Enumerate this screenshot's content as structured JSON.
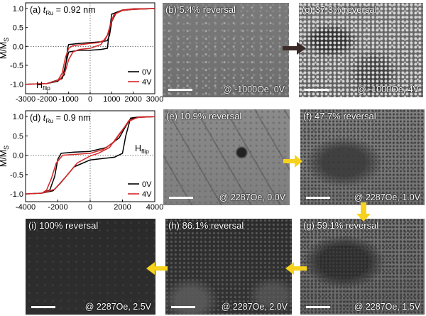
{
  "colors": {
    "curve_0v": "#000000",
    "curve_4v": "#d62728",
    "arrow_dark": "#3a2a28",
    "arrow_yellow": "#f6d21c"
  },
  "chart_data": [
    {
      "id": "a",
      "type": "line",
      "panel_label": "(a)",
      "annotation_t": "t",
      "annotation_sub": "Ru",
      "annotation_value": "= 0.92 nm",
      "hflip_main": "H",
      "hflip_sub": "flip",
      "ylabel": "M/M",
      "ylabel_sub": "S",
      "xlim": [
        -3000,
        3000
      ],
      "ylim": [
        -1.25,
        1.15
      ],
      "x_ticks": [
        -3000,
        -2000,
        -1000,
        0,
        1000,
        2000,
        3000
      ],
      "y_ticks": [
        -1.0,
        -0.5,
        0.0,
        0.5,
        1.0
      ],
      "y_tick_labels": [
        "-1.0",
        "-0.5",
        "0.0",
        "0.5",
        "1.0"
      ],
      "legend": [
        {
          "name": "0V",
          "color": "#000000"
        },
        {
          "name": "4V",
          "color": "#d62728"
        }
      ],
      "legend_position": "bottom-right",
      "series": [
        {
          "name": "0V",
          "color": "#000000",
          "points": [
            [
              -3000,
              -1.0
            ],
            [
              -2000,
              -0.98
            ],
            [
              -1500,
              -0.92
            ],
            [
              -1200,
              -0.75
            ],
            [
              -1100,
              -0.35
            ],
            [
              -1050,
              -0.05
            ],
            [
              -1000,
              0.05
            ],
            [
              -500,
              0.08
            ],
            [
              0,
              0.1
            ],
            [
              500,
              0.12
            ],
            [
              800,
              0.15
            ],
            [
              900,
              0.3
            ],
            [
              1000,
              0.65
            ],
            [
              1200,
              0.88
            ],
            [
              1500,
              0.95
            ],
            [
              2000,
              0.98
            ],
            [
              3000,
              1.0
            ],
            [
              2000,
              0.99
            ],
            [
              1500,
              0.96
            ],
            [
              1000,
              0.85
            ],
            [
              850,
              0.2
            ],
            [
              800,
              -0.05
            ],
            [
              500,
              -0.08
            ],
            [
              0,
              -0.1
            ],
            [
              -500,
              -0.1
            ],
            [
              -1000,
              -0.15
            ],
            [
              -1150,
              -0.5
            ],
            [
              -1300,
              -0.85
            ],
            [
              -2000,
              -0.98
            ],
            [
              -3000,
              -1.0
            ]
          ]
        },
        {
          "name": "4V",
          "color": "#d62728",
          "points": [
            [
              -3000,
              -1.0
            ],
            [
              -2000,
              -0.98
            ],
            [
              -1500,
              -0.9
            ],
            [
              -1300,
              -0.7
            ],
            [
              -1150,
              -0.3
            ],
            [
              -1000,
              -0.05
            ],
            [
              -800,
              0.02
            ],
            [
              -400,
              0.05
            ],
            [
              0,
              0.08
            ],
            [
              400,
              0.1
            ],
            [
              700,
              0.18
            ],
            [
              850,
              0.35
            ],
            [
              950,
              0.6
            ],
            [
              1150,
              0.85
            ],
            [
              1500,
              0.95
            ],
            [
              2000,
              0.98
            ],
            [
              3000,
              1.0
            ],
            [
              2000,
              0.99
            ],
            [
              1500,
              0.96
            ],
            [
              1100,
              0.84
            ],
            [
              950,
              0.6
            ],
            [
              800,
              0.3
            ],
            [
              500,
              0.05
            ],
            [
              0,
              -0.05
            ],
            [
              -500,
              -0.08
            ],
            [
              -800,
              -0.15
            ],
            [
              -1000,
              -0.35
            ],
            [
              -1150,
              -0.65
            ],
            [
              -1400,
              -0.88
            ],
            [
              -2000,
              -0.98
            ],
            [
              -3000,
              -1.0
            ]
          ]
        }
      ]
    },
    {
      "id": "d",
      "type": "line",
      "panel_label": "(d)",
      "annotation_t": "t",
      "annotation_sub": "Ru",
      "annotation_value": "= 0.9 nm",
      "hflip_main": "H",
      "hflip_sub": "flip",
      "ylabel": "M/M",
      "ylabel_sub": "S",
      "xlim": [
        -4000,
        4000
      ],
      "ylim": [
        -1.2,
        1.15
      ],
      "x_ticks": [
        -4000,
        -2000,
        0,
        2000,
        4000
      ],
      "y_ticks": [
        -1.0,
        -0.5,
        0.0,
        0.5,
        1.0
      ],
      "y_tick_labels": [
        "-1.0",
        "-0.5",
        "0.0",
        "0.5",
        "1.0"
      ],
      "legend": [
        {
          "name": "0V",
          "color": "#000000"
        },
        {
          "name": "4V",
          "color": "#d62728"
        }
      ],
      "legend_position": "bottom-right",
      "series": [
        {
          "name": "0V",
          "color": "#000000",
          "points": [
            [
              -4000,
              -1.0
            ],
            [
              -3000,
              -0.98
            ],
            [
              -2500,
              -0.9
            ],
            [
              -2200,
              -0.55
            ],
            [
              -2000,
              -0.1
            ],
            [
              -1800,
              0.05
            ],
            [
              -1000,
              0.08
            ],
            [
              0,
              0.1
            ],
            [
              1000,
              0.2
            ],
            [
              1800,
              0.45
            ],
            [
              2200,
              0.75
            ],
            [
              2500,
              0.95
            ],
            [
              3000,
              0.98
            ],
            [
              4000,
              1.0
            ],
            [
              3000,
              0.99
            ],
            [
              2500,
              0.96
            ],
            [
              2200,
              0.5
            ],
            [
              2000,
              0.05
            ],
            [
              1500,
              -0.05
            ],
            [
              0,
              -0.12
            ],
            [
              -1000,
              -0.3
            ],
            [
              -1800,
              -0.7
            ],
            [
              -2300,
              -0.92
            ],
            [
              -3000,
              -0.98
            ],
            [
              -4000,
              -1.0
            ]
          ]
        },
        {
          "name": "4V",
          "color": "#d62728",
          "points": [
            [
              -4000,
              -1.0
            ],
            [
              -3000,
              -0.98
            ],
            [
              -2700,
              -0.9
            ],
            [
              -2400,
              -0.6
            ],
            [
              -2100,
              -0.2
            ],
            [
              -1700,
              0.0
            ],
            [
              -1000,
              0.02
            ],
            [
              0,
              0.05
            ],
            [
              800,
              0.15
            ],
            [
              1500,
              0.35
            ],
            [
              2000,
              0.65
            ],
            [
              2400,
              0.9
            ],
            [
              3000,
              0.98
            ],
            [
              4000,
              1.0
            ],
            [
              3000,
              0.99
            ],
            [
              2400,
              0.88
            ],
            [
              1800,
              0.55
            ],
            [
              1200,
              0.2
            ],
            [
              500,
              0.05
            ],
            [
              0,
              -0.02
            ],
            [
              -800,
              -0.2
            ],
            [
              -1500,
              -0.55
            ],
            [
              -2200,
              -0.88
            ],
            [
              -3000,
              -0.98
            ],
            [
              -4000,
              -1.0
            ]
          ]
        }
      ]
    }
  ],
  "panels": {
    "b": {
      "label": "(b) 5.4% reversal",
      "condition": "@ -1000Oe, 0V"
    },
    "c": {
      "label": "(c) 37.3% reversal",
      "condition": "@ -1000Oe, 4V"
    },
    "e": {
      "label": "(e) 10.9% reversal",
      "condition": "@ 2287Oe, 0.0V"
    },
    "f": {
      "label": "(f) 47.7% reversal",
      "condition": "@ 2287Oe, 1.0V"
    },
    "g": {
      "label": "(g) 59.1% reversal",
      "condition": "@ 2287Oe, 1.5V"
    },
    "h": {
      "label": "(h) 86.1% reversal",
      "condition": "@ 2287Oe, 2.0V"
    },
    "i": {
      "label": "(i) 100% reversal",
      "condition": "@ 2287Oe, 2.5V"
    }
  }
}
